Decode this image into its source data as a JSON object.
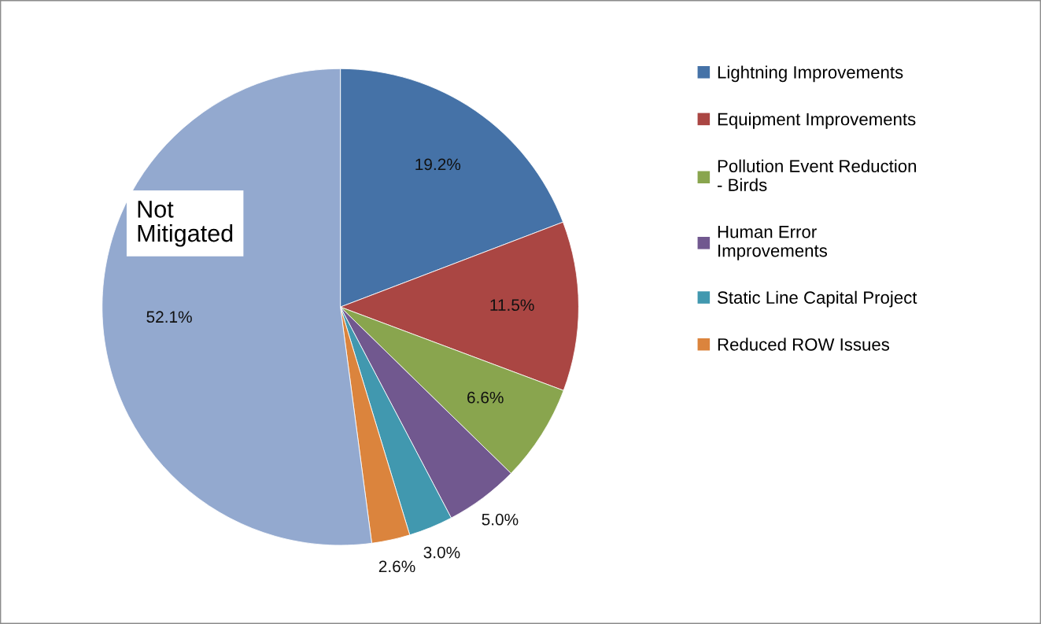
{
  "chart_data": {
    "type": "pie",
    "categories": [
      "Lightning Improvements",
      "Equipment Improvements",
      "Pollution Event Reduction\n- Birds",
      "Human Error\nImprovements",
      "Static Line Capital Project",
      "Reduced ROW Issues",
      null
    ],
    "values": [
      19.2,
      11.5,
      6.6,
      5.0,
      3.0,
      2.6,
      52.1
    ],
    "colors": [
      "#4572a7",
      "#aa4643",
      "#89a54e",
      "#71588f",
      "#4198af",
      "#db843d",
      "#93a9cf"
    ],
    "value_labels": [
      "19.2%",
      "11.5%",
      "6.6%",
      "5.0%",
      "3.0%",
      "2.6%",
      "52.1%"
    ],
    "annotations": [
      "Not\nMitigated"
    ],
    "legend": "right"
  }
}
